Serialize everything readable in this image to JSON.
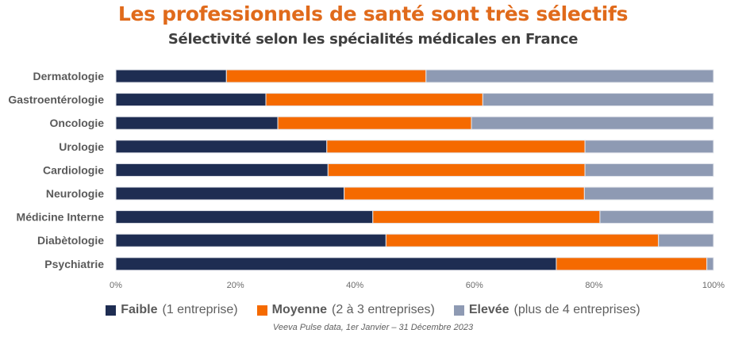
{
  "title": "Les professionnels de santé sont très sélectifs",
  "subtitle": "Sélectivité selon les spécialités médicales en France",
  "source": "Veeva Pulse data, 1er Janvier – 31 Décembre 2023",
  "legend": [
    {
      "name": "Faible",
      "detail": "(1 entreprise)",
      "color": "#1e2d52"
    },
    {
      "name": "Moyenne",
      "detail": "(2 à 3 entreprises)",
      "color": "#f56a00"
    },
    {
      "name": "Elevée",
      "detail": "(plus de 4 entreprises)",
      "color": "#8e9ab3"
    }
  ],
  "chart_data": {
    "type": "bar",
    "orientation": "horizontal",
    "stacked": "percent",
    "title": "Les professionnels de santé sont très sélectifs",
    "subtitle": "Sélectivité selon les spécialités médicales en France",
    "xlabel": "",
    "ylabel": "",
    "xlim": [
      0,
      100
    ],
    "x_ticks": [
      "0%",
      "20%",
      "40%",
      "60%",
      "80%",
      "100%"
    ],
    "x_tick_values": [
      0,
      20,
      40,
      60,
      80,
      100
    ],
    "grid": false,
    "legend_position": "bottom",
    "categories": [
      "Dermatologie",
      "Gastroentérologie",
      "Oncologie",
      "Urologie",
      "Cardiologie",
      "Neurologie",
      "Médicine Interne",
      "Diabètologie",
      "Psychiatrie"
    ],
    "series": [
      {
        "name": "Faible (1 entreprise)",
        "color": "#1e2d52",
        "values": [
          18.5,
          25.1,
          27.1,
          35.3,
          35.5,
          38.2,
          43.0,
          45.2,
          73.7
        ]
      },
      {
        "name": "Moyenne (2 à 3 entreprises)",
        "color": "#f56a00",
        "values": [
          33.4,
          36.3,
          32.4,
          43.2,
          43.0,
          40.2,
          38.0,
          45.6,
          25.2
        ]
      },
      {
        "name": "Elevée (plus de 4 entreprises)",
        "color": "#8e9ab3",
        "values": [
          48.1,
          38.6,
          40.5,
          21.5,
          21.5,
          21.6,
          19.0,
          9.2,
          1.1
        ]
      }
    ]
  }
}
